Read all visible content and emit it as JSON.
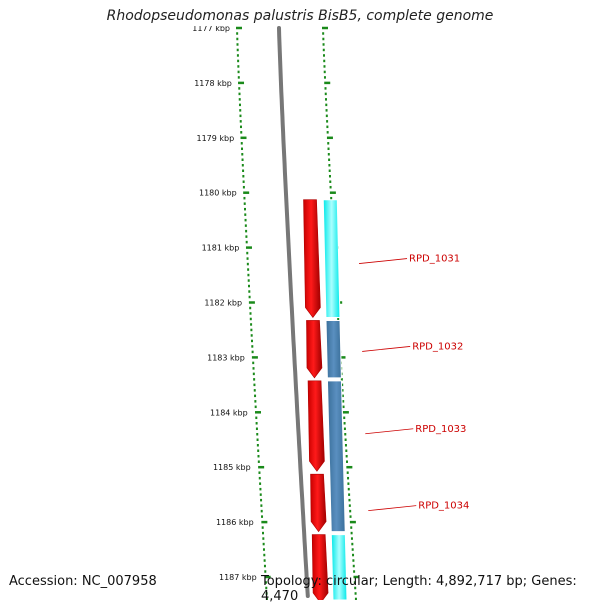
{
  "title": "Rhodopseudomonas palustris BisB5, complete genome",
  "footer": {
    "accession": "Accession: NC_007958",
    "summary": "Topology: circular; Length: 4,892,717 bp; Genes: 4,470"
  },
  "colors": {
    "forward_cds": "#ee0000",
    "cds_dark": "#4682b4",
    "cds_light": "#00ffff",
    "tick": "#1a8a1a",
    "backbone": "#777777",
    "label": "#cc0000"
  },
  "chart_data": {
    "type": "genome-map",
    "view_range_kbp": [
      1177,
      1187
    ],
    "tick_labels": [
      "1177 kbp",
      "1178 kbp",
      "1179 kbp",
      "1180 kbp",
      "1181 kbp",
      "1182 kbp",
      "1183 kbp",
      "1184 kbp",
      "1185 kbp",
      "1186 kbp",
      "1187 kbp"
    ],
    "forward_features": [
      {
        "start_kbp": 1180.1,
        "end_kbp": 1182.3
      },
      {
        "start_kbp": 1182.3,
        "end_kbp": 1183.4
      },
      {
        "start_kbp": 1183.4,
        "end_kbp": 1185.1
      },
      {
        "start_kbp": 1185.1,
        "end_kbp": 1186.2
      },
      {
        "start_kbp": 1186.2,
        "end_kbp": 1187.5
      }
    ],
    "cds_features": [
      {
        "start_kbp": 1180.1,
        "end_kbp": 1182.3,
        "shade": "light"
      },
      {
        "start_kbp": 1182.3,
        "end_kbp": 1183.4,
        "shade": "dark"
      },
      {
        "start_kbp": 1183.4,
        "end_kbp": 1186.2,
        "shade": "dark"
      },
      {
        "start_kbp": 1186.2,
        "end_kbp": 1187.5,
        "shade": "light"
      }
    ],
    "gene_labels": [
      {
        "label": "RPD_1031",
        "pos_kbp": 1181.2
      },
      {
        "label": "RPD_1032",
        "pos_kbp": 1182.8
      },
      {
        "label": "RPD_1033",
        "pos_kbp": 1184.3
      },
      {
        "label": "RPD_1034",
        "pos_kbp": 1185.7
      }
    ]
  }
}
